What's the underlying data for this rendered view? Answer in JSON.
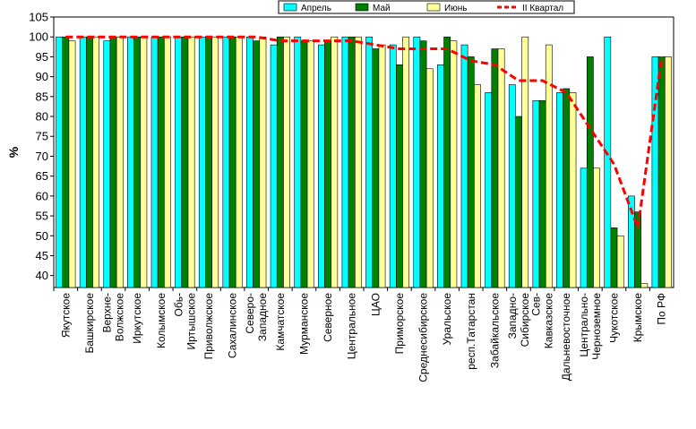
{
  "chart_data": {
    "type": "bar",
    "ylabel": "%",
    "ylim": [
      37,
      105
    ],
    "yticks": [
      40,
      45,
      50,
      55,
      60,
      65,
      70,
      75,
      80,
      85,
      90,
      95,
      100,
      105
    ],
    "grid": false,
    "legend_position": "top-right",
    "categories": [
      "Якутское",
      "Башкирское",
      "Верхне-Волжское",
      "Иркутское",
      "Колымское",
      "Обь-Иртышское",
      "Приволжское",
      "Сахалинское",
      "Северо-Западное",
      "Камчатское",
      "Мурманское",
      "Северное",
      "Центральное",
      "ЦАО",
      "Приморское",
      "Среднесибирское",
      "Уральское",
      "респ.Татарстан",
      "Забайкальское",
      "Западно-Сибирское",
      "Сев-Кавказское",
      "Дальневосточное",
      "Центрально-Черноземное",
      "Чукотское",
      "Крымское",
      "По РФ"
    ],
    "category_lines": [
      [
        "Якутское"
      ],
      [
        "Башкирское"
      ],
      [
        "Верхне-",
        "Волжское"
      ],
      [
        "Иркутское"
      ],
      [
        "Колымское"
      ],
      [
        "Обь-",
        "Иртышское"
      ],
      [
        "Приволжское"
      ],
      [
        "Сахалинское"
      ],
      [
        "Северо-",
        "Западное"
      ],
      [
        "Камчатское"
      ],
      [
        "Мурманское"
      ],
      [
        "Северное"
      ],
      [
        "Центральное"
      ],
      [
        "ЦАО"
      ],
      [
        "Приморское"
      ],
      [
        "Среднесибирское"
      ],
      [
        "Уральское"
      ],
      [
        "респ.Татарстан"
      ],
      [
        "Забайкальское"
      ],
      [
        "Западно-",
        "Сибирское"
      ],
      [
        "Сев-",
        "Кавказское"
      ],
      [
        "Дальневосточное"
      ],
      [
        "Центрально-",
        "Черноземное"
      ],
      [
        "Чукотское"
      ],
      [
        "Крымское"
      ],
      [
        "По РФ"
      ]
    ],
    "series": [
      {
        "name": "Апрель",
        "type": "bar",
        "color": "#00FFFF",
        "values": [
          100,
          100,
          99,
          100,
          100,
          100,
          100,
          100,
          100,
          98,
          100,
          98,
          100,
          100,
          98,
          100,
          93,
          98,
          86,
          88,
          84,
          86,
          67,
          100,
          60,
          95
        ]
      },
      {
        "name": "Май",
        "type": "bar",
        "color": "#008000",
        "values": [
          100,
          100,
          100,
          100,
          100,
          100,
          100,
          100,
          99,
          100,
          99,
          99,
          100,
          97,
          93,
          99,
          100,
          95,
          97,
          80,
          84,
          87,
          95,
          52,
          56,
          95
        ]
      },
      {
        "name": "Июнь",
        "type": "bar",
        "color": "#FFFF99",
        "values": [
          99,
          100,
          100,
          100,
          100,
          100,
          100,
          100,
          100,
          100,
          99,
          100,
          100,
          98,
          100,
          92,
          99,
          88,
          97,
          100,
          98,
          86,
          67,
          50,
          38,
          95
        ]
      },
      {
        "name": "II Квартал",
        "type": "line",
        "color": "#FF0000",
        "values": [
          100,
          100,
          100,
          100,
          100,
          100,
          100,
          100,
          100,
          99,
          99,
          99,
          99,
          98,
          97,
          97,
          97,
          94,
          93,
          89,
          89,
          86,
          77,
          68,
          52,
          95
        ]
      }
    ]
  }
}
